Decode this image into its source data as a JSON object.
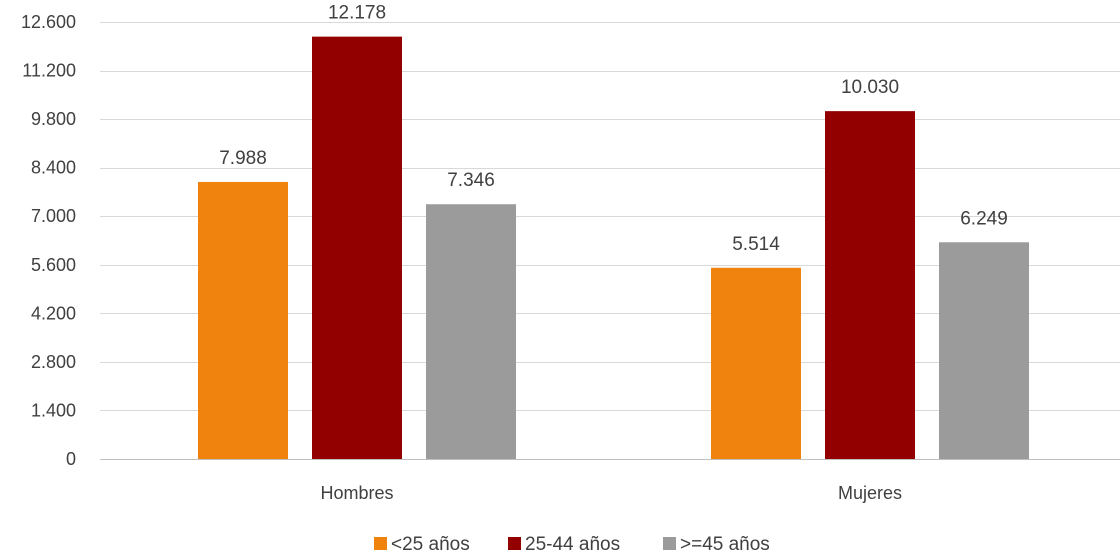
{
  "chart_data": {
    "type": "bar",
    "categories": [
      "Hombres",
      "Mujeres"
    ],
    "series": [
      {
        "name": "<25 años",
        "values": [
          7988,
          5514
        ],
        "labels": [
          "7.988",
          "5.514"
        ],
        "color": "#F0820E"
      },
      {
        "name": "25-44 años",
        "values": [
          12178,
          10030
        ],
        "labels": [
          "12.178",
          "10.030"
        ],
        "color": "#920000"
      },
      {
        "name": ">=45 años",
        "values": [
          7346,
          6249
        ],
        "labels": [
          "7.346",
          "6.249"
        ],
        "color": "#9B9B9B"
      }
    ],
    "yticks": [
      0,
      1400,
      2800,
      4200,
      5600,
      7000,
      8400,
      9800,
      11200,
      12600
    ],
    "ytick_labels": [
      "0",
      "1.400",
      "2.800",
      "4.200",
      "5.600",
      "7.000",
      "8.400",
      "9.800",
      "11.200",
      "12.600"
    ],
    "ylim": [
      0,
      12600
    ],
    "grid": true,
    "legend_position": "bottom",
    "colors": {
      "grid": "#D9D9D9",
      "text": "#404040"
    }
  }
}
